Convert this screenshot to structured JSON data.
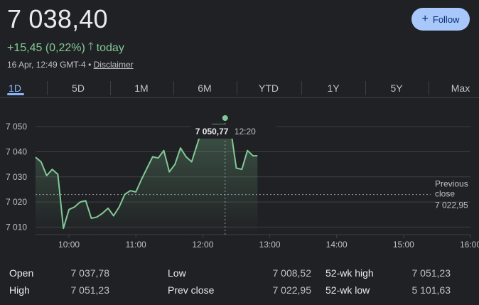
{
  "quote": {
    "price": "7 038,40",
    "change": "+15,45 (0,22%)",
    "change_arrow": "🡑",
    "change_period": "today",
    "timestamp": "16 Apr, 12:49 GMT-4",
    "separator": "•",
    "disclaimer": "Disclaimer"
  },
  "follow_button": {
    "label": "Follow",
    "icon": "plus-icon"
  },
  "tabs": [
    "1D",
    "5D",
    "1M",
    "6M",
    "YTD",
    "1Y",
    "5Y",
    "Max"
  ],
  "active_tab": "1D",
  "colors": {
    "background": "#202124",
    "line": "#81c995",
    "positive": "#81c995",
    "tab_active": "#8ab4f8",
    "button": "#a8c7fa",
    "button_text": "#062e6f",
    "grid": "#3c4043",
    "text": "#e8eaed",
    "muted": "#bdc1c6"
  },
  "tooltip": {
    "value": "7 050,77",
    "time": "12:20"
  },
  "previous_close_label_1": "Previous",
  "previous_close_label_2": "close",
  "previous_close_value": "7 022,95",
  "chart_data": {
    "type": "area",
    "y_ticks": [
      7010,
      7020,
      7030,
      7040,
      7050
    ],
    "y_tick_labels": [
      "7 010",
      "7 020",
      "7 030",
      "7 040",
      "7 050"
    ],
    "x_ticks": [
      "10:00",
      "11:00",
      "12:00",
      "13:00",
      "14:00",
      "15:00",
      "16:00"
    ],
    "ylim": [
      7007,
      7054
    ],
    "xlim": [
      "09:30",
      "16:00"
    ],
    "previous_close": 7022.95,
    "hover_time": "12:20",
    "grid": true,
    "series": [
      {
        "x": [
          "09:30",
          "09:35",
          "09:40",
          "09:45",
          "09:50",
          "09:55",
          "10:00",
          "10:05",
          "10:10",
          "10:15",
          "10:20",
          "10:25",
          "10:30",
          "10:35",
          "10:40",
          "10:45",
          "10:50",
          "10:55",
          "11:00",
          "11:05",
          "11:10",
          "11:15",
          "11:20",
          "11:25",
          "11:30",
          "11:35",
          "11:40",
          "11:45",
          "11:50",
          "11:55",
          "12:00",
          "12:05",
          "12:10",
          "12:15",
          "12:20",
          "12:25",
          "12:30",
          "12:35",
          "12:40",
          "12:45",
          "12:49"
        ],
        "values": [
          7037.8,
          7036.0,
          7030.5,
          7033.0,
          7031.0,
          7009.5,
          7017.0,
          7018.0,
          7020.0,
          7020.5,
          7013.5,
          7014.0,
          7015.5,
          7017.5,
          7014.5,
          7018.0,
          7023.0,
          7024.5,
          7024.0,
          7029.0,
          7033.5,
          7038.0,
          7037.5,
          7040.5,
          7032.0,
          7035.0,
          7041.5,
          7038.0,
          7036.0,
          7043.0,
          7050.0,
          7050.5,
          7050.8,
          7050.77,
          7050.77,
          7049.0,
          7033.5,
          7033.0,
          7040.5,
          7038.4,
          7038.4
        ]
      }
    ]
  },
  "stats": [
    [
      {
        "label": "Open",
        "value": "7 037,78"
      },
      {
        "label": "Low",
        "value": "7 008,52"
      },
      {
        "label": "52-wk high",
        "value": "7 051,23"
      }
    ],
    [
      {
        "label": "High",
        "value": "7 051,23"
      },
      {
        "label": "Prev close",
        "value": "7 022,95"
      },
      {
        "label": "52-wk low",
        "value": "5 101,63"
      }
    ]
  ]
}
